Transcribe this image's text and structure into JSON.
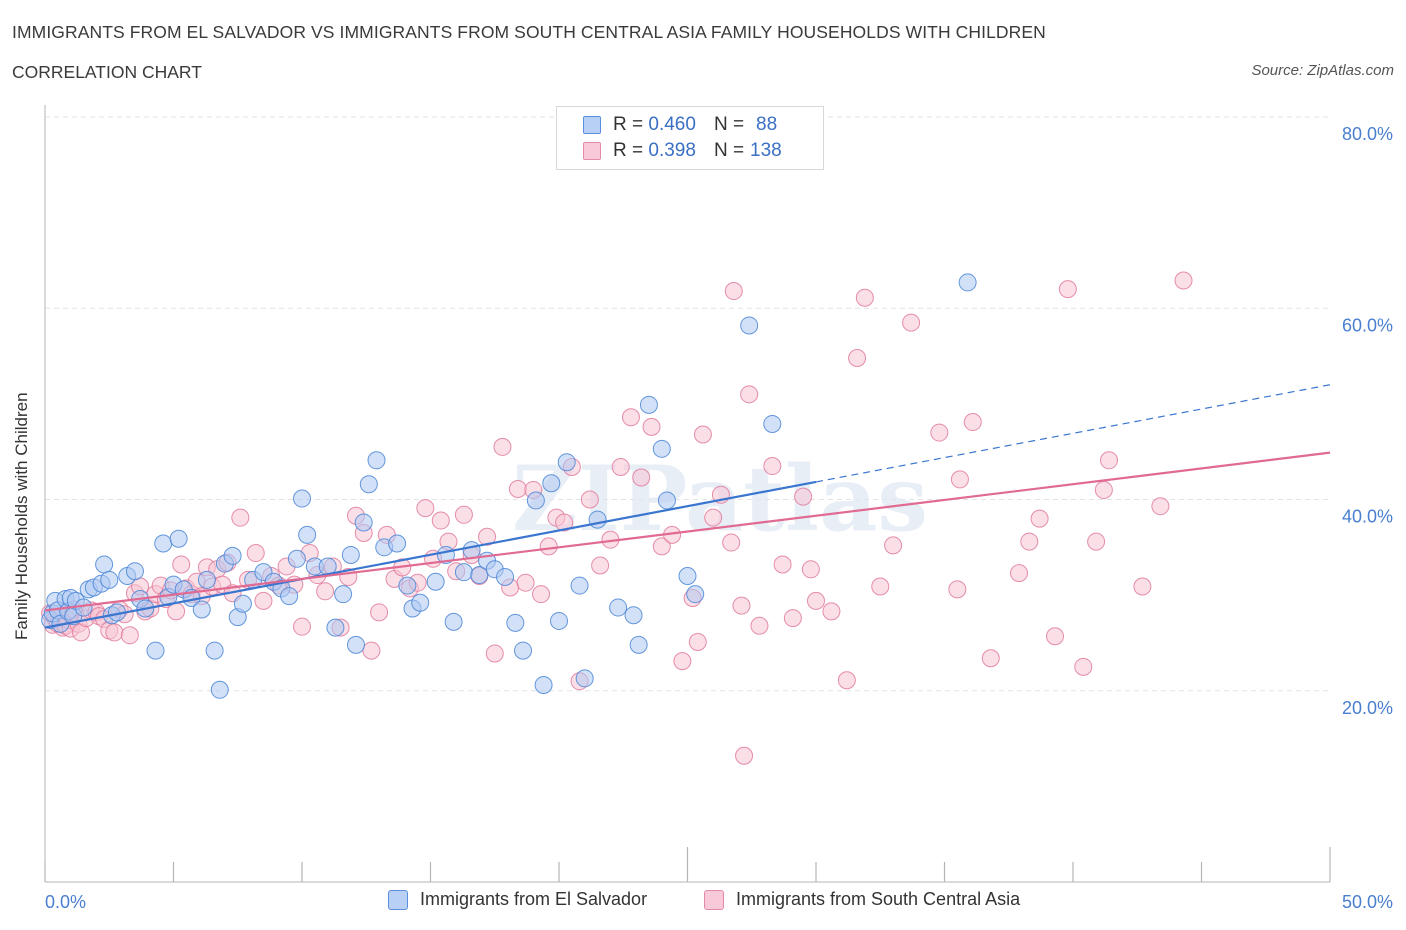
{
  "header": {
    "title": "IMMIGRANTS FROM EL SALVADOR VS IMMIGRANTS FROM SOUTH CENTRAL ASIA FAMILY HOUSEHOLDS WITH CHILDREN",
    "subtitle": "CORRELATION CHART",
    "source": "Source: ZipAtlas.com"
  },
  "legend": {
    "row1": {
      "r_label": "R =",
      "r_value": "0.460",
      "n_label": "N =",
      "n_value": "88"
    },
    "row2": {
      "r_label": "R =",
      "r_value": "0.398",
      "n_label": "N =",
      "n_value": "138"
    }
  },
  "bottom_legend": {
    "series1": "Immigrants from El Salvador",
    "series2": "Immigrants from South Central Asia"
  },
  "colors": {
    "blue_fill": "#aec9f3",
    "blue_stroke": "#4a86d6",
    "blue_line": "#3a76cf",
    "pink_fill": "#f7c4d4",
    "pink_stroke": "#e07a9c",
    "pink_line": "#e06a92",
    "tick_color": "#4a7fd0",
    "grid": "#e3e3e3"
  },
  "chart_data": {
    "type": "scatter",
    "title": "IMMIGRANTS FROM EL SALVADOR VS IMMIGRANTS FROM SOUTH CENTRAL ASIA FAMILY HOUSEHOLDS WITH CHILDREN",
    "xlabel": "",
    "ylabel": "Family Households with Children",
    "xlim": [
      0,
      50
    ],
    "ylim": [
      0,
      80
    ],
    "x_ticks": [
      "0.0%",
      "50.0%"
    ],
    "y_ticks": [
      {
        "value": 20,
        "label": "20.0%"
      },
      {
        "value": 40,
        "label": "40.0%"
      },
      {
        "value": 60,
        "label": "60.0%"
      },
      {
        "value": 80,
        "label": "80.0%"
      }
    ],
    "watermark": "ZIPatlas",
    "series": [
      {
        "name": "Immigrants from El Salvador",
        "R": 0.46,
        "N": 88,
        "trend": {
          "x_start": 0,
          "y_start": 26.6,
          "x_solid_end": 30,
          "x_end": 50,
          "y_end": 52.0
        },
        "points": [
          [
            0.2,
            27.4
          ],
          [
            0.3,
            28.1
          ],
          [
            0.4,
            29.4
          ],
          [
            0.5,
            28.4
          ],
          [
            0.6,
            27.0
          ],
          [
            0.8,
            29.6
          ],
          [
            0.9,
            28.3
          ],
          [
            1.0,
            29.7
          ],
          [
            1.1,
            27.8
          ],
          [
            1.2,
            29.4
          ],
          [
            1.5,
            28.7
          ],
          [
            1.7,
            30.6
          ],
          [
            1.9,
            30.8
          ],
          [
            2.2,
            31.2
          ],
          [
            2.3,
            33.2
          ],
          [
            2.5,
            31.6
          ],
          [
            2.6,
            27.9
          ],
          [
            2.8,
            28.2
          ],
          [
            3.2,
            32.0
          ],
          [
            3.5,
            32.5
          ],
          [
            3.7,
            29.6
          ],
          [
            3.9,
            28.6
          ],
          [
            4.3,
            24.2
          ],
          [
            4.6,
            35.4
          ],
          [
            4.8,
            29.8
          ],
          [
            5.0,
            31.1
          ],
          [
            5.2,
            35.9
          ],
          [
            5.4,
            30.6
          ],
          [
            5.7,
            29.7
          ],
          [
            6.1,
            28.5
          ],
          [
            6.3,
            31.6
          ],
          [
            6.6,
            24.2
          ],
          [
            6.8,
            20.1
          ],
          [
            7.0,
            33.3
          ],
          [
            7.3,
            34.1
          ],
          [
            7.5,
            27.7
          ],
          [
            7.7,
            29.1
          ],
          [
            8.1,
            31.6
          ],
          [
            8.5,
            32.4
          ],
          [
            8.9,
            31.4
          ],
          [
            9.2,
            30.7
          ],
          [
            9.5,
            29.9
          ],
          [
            9.8,
            33.8
          ],
          [
            10.0,
            40.1
          ],
          [
            10.2,
            36.3
          ],
          [
            10.5,
            33.0
          ],
          [
            11.0,
            33.0
          ],
          [
            11.3,
            26.6
          ],
          [
            11.6,
            30.1
          ],
          [
            11.9,
            34.2
          ],
          [
            12.1,
            24.8
          ],
          [
            12.4,
            37.6
          ],
          [
            12.6,
            41.6
          ],
          [
            12.9,
            44.1
          ],
          [
            13.2,
            35.0
          ],
          [
            13.7,
            35.4
          ],
          [
            14.1,
            31.0
          ],
          [
            14.3,
            28.6
          ],
          [
            14.6,
            29.2
          ],
          [
            15.2,
            31.4
          ],
          [
            15.6,
            34.2
          ],
          [
            15.9,
            27.2
          ],
          [
            16.3,
            32.4
          ],
          [
            16.6,
            34.7
          ],
          [
            16.9,
            32.1
          ],
          [
            17.2,
            33.6
          ],
          [
            17.5,
            32.7
          ],
          [
            17.9,
            31.9
          ],
          [
            18.3,
            27.1
          ],
          [
            18.6,
            24.2
          ],
          [
            19.1,
            39.9
          ],
          [
            19.4,
            20.6
          ],
          [
            19.7,
            41.7
          ],
          [
            20.0,
            27.3
          ],
          [
            20.3,
            43.9
          ],
          [
            20.8,
            31.0
          ],
          [
            21.0,
            21.3
          ],
          [
            21.5,
            37.9
          ],
          [
            22.3,
            28.7
          ],
          [
            22.9,
            27.9
          ],
          [
            23.1,
            24.8
          ],
          [
            23.5,
            49.9
          ],
          [
            24.0,
            45.3
          ],
          [
            24.2,
            39.9
          ],
          [
            25.0,
            32.0
          ],
          [
            25.3,
            30.1
          ],
          [
            35.9,
            62.7
          ],
          [
            27.4,
            58.2
          ],
          [
            28.3,
            47.9
          ]
        ]
      },
      {
        "name": "Immigrants from South Central Asia",
        "R": 0.398,
        "N": 138,
        "trend": {
          "x_start": 0,
          "y_start": 28.4,
          "x_end": 50,
          "y_end": 44.9
        },
        "points": [
          [
            0.2,
            28.1
          ],
          [
            0.3,
            26.9
          ],
          [
            0.4,
            27.6
          ],
          [
            0.5,
            27.0
          ],
          [
            0.6,
            27.6
          ],
          [
            0.7,
            26.6
          ],
          [
            0.8,
            26.8
          ],
          [
            0.9,
            27.4
          ],
          [
            1.0,
            26.5
          ],
          [
            1.1,
            28.5
          ],
          [
            1.3,
            27.0
          ],
          [
            1.4,
            26.1
          ],
          [
            1.6,
            27.6
          ],
          [
            1.8,
            28.4
          ],
          [
            2.0,
            28.2
          ],
          [
            2.1,
            27.8
          ],
          [
            2.3,
            27.5
          ],
          [
            2.5,
            26.3
          ],
          [
            2.7,
            26.1
          ],
          [
            2.9,
            28.5
          ],
          [
            3.1,
            28.0
          ],
          [
            3.3,
            25.8
          ],
          [
            3.5,
            30.2
          ],
          [
            3.7,
            30.9
          ],
          [
            3.9,
            28.3
          ],
          [
            4.1,
            28.6
          ],
          [
            4.3,
            30.1
          ],
          [
            4.5,
            31.0
          ],
          [
            4.7,
            29.6
          ],
          [
            4.9,
            30.5
          ],
          [
            5.1,
            28.3
          ],
          [
            5.3,
            33.2
          ],
          [
            5.5,
            30.7
          ],
          [
            5.7,
            30.1
          ],
          [
            5.9,
            31.4
          ],
          [
            6.1,
            29.9
          ],
          [
            6.3,
            32.9
          ],
          [
            6.5,
            30.9
          ],
          [
            6.7,
            32.7
          ],
          [
            6.9,
            31.1
          ],
          [
            7.1,
            33.4
          ],
          [
            7.3,
            30.2
          ],
          [
            7.6,
            38.1
          ],
          [
            7.9,
            31.6
          ],
          [
            8.2,
            34.4
          ],
          [
            8.5,
            29.4
          ],
          [
            8.8,
            32.0
          ],
          [
            9.1,
            31.0
          ],
          [
            9.4,
            33.0
          ],
          [
            9.7,
            31.1
          ],
          [
            10.0,
            26.7
          ],
          [
            10.3,
            34.4
          ],
          [
            10.6,
            32.1
          ],
          [
            10.9,
            30.4
          ],
          [
            11.2,
            33.0
          ],
          [
            11.5,
            26.6
          ],
          [
            11.8,
            31.9
          ],
          [
            12.1,
            38.3
          ],
          [
            12.4,
            36.5
          ],
          [
            12.7,
            24.2
          ],
          [
            13.0,
            28.2
          ],
          [
            13.3,
            36.3
          ],
          [
            13.6,
            31.7
          ],
          [
            13.9,
            32.9
          ],
          [
            14.2,
            30.7
          ],
          [
            14.5,
            31.3
          ],
          [
            14.8,
            39.1
          ],
          [
            15.1,
            33.8
          ],
          [
            15.4,
            37.8
          ],
          [
            15.7,
            35.6
          ],
          [
            16.0,
            32.5
          ],
          [
            16.3,
            38.4
          ],
          [
            16.6,
            34.2
          ],
          [
            16.9,
            32.0
          ],
          [
            17.2,
            36.1
          ],
          [
            17.5,
            23.9
          ],
          [
            17.8,
            45.5
          ],
          [
            18.1,
            30.8
          ],
          [
            18.4,
            41.1
          ],
          [
            18.7,
            31.3
          ],
          [
            19.0,
            41.0
          ],
          [
            19.3,
            30.1
          ],
          [
            19.6,
            35.1
          ],
          [
            19.9,
            38.1
          ],
          [
            20.2,
            37.6
          ],
          [
            20.5,
            43.4
          ],
          [
            20.8,
            21.0
          ],
          [
            21.2,
            40.0
          ],
          [
            21.6,
            33.1
          ],
          [
            22.0,
            35.8
          ],
          [
            22.4,
            43.4
          ],
          [
            22.8,
            48.6
          ],
          [
            23.2,
            42.3
          ],
          [
            23.6,
            47.6
          ],
          [
            24.0,
            35.1
          ],
          [
            24.4,
            36.3
          ],
          [
            24.8,
            23.1
          ],
          [
            25.2,
            29.7
          ],
          [
            25.6,
            46.8
          ],
          [
            26.0,
            38.1
          ],
          [
            26.3,
            40.5
          ],
          [
            26.7,
            35.5
          ],
          [
            27.1,
            28.9
          ],
          [
            27.4,
            51.0
          ],
          [
            27.8,
            26.8
          ],
          [
            28.3,
            43.5
          ],
          [
            28.7,
            33.2
          ],
          [
            29.1,
            27.6
          ],
          [
            29.5,
            40.3
          ],
          [
            29.8,
            32.7
          ],
          [
            30.0,
            29.4
          ],
          [
            30.6,
            28.3
          ],
          [
            31.2,
            21.1
          ],
          [
            31.6,
            54.8
          ],
          [
            31.9,
            61.1
          ],
          [
            32.5,
            30.9
          ],
          [
            33.0,
            35.2
          ],
          [
            33.7,
            58.5
          ],
          [
            34.8,
            47.0
          ],
          [
            35.5,
            30.6
          ],
          [
            36.1,
            48.1
          ],
          [
            36.8,
            23.4
          ],
          [
            37.9,
            32.3
          ],
          [
            38.3,
            35.6
          ],
          [
            38.7,
            38.0
          ],
          [
            39.3,
            25.7
          ],
          [
            39.8,
            62.0
          ],
          [
            40.4,
            22.5
          ],
          [
            40.9,
            35.6
          ],
          [
            41.2,
            41.0
          ],
          [
            41.4,
            44.1
          ],
          [
            42.7,
            30.9
          ],
          [
            43.4,
            39.3
          ],
          [
            44.3,
            62.9
          ],
          [
            25.4,
            25.1
          ],
          [
            26.8,
            61.8
          ],
          [
            27.2,
            13.2
          ],
          [
            35.6,
            42.1
          ]
        ]
      }
    ]
  }
}
